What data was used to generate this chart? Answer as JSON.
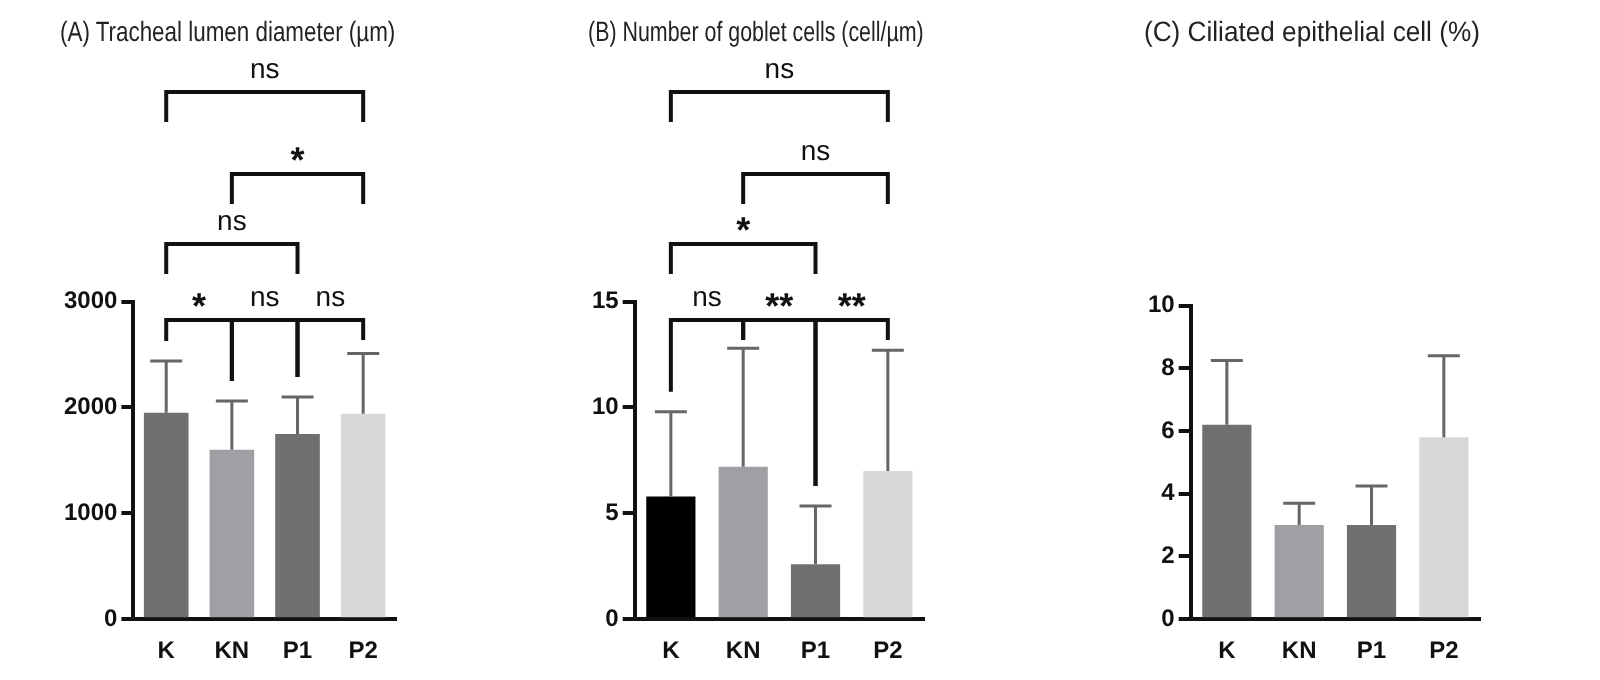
{
  "chart_data": [
    {
      "type": "bar",
      "title": "(A) Tracheal lumen diameter (µm)",
      "categories": [
        "K",
        "KN",
        "P1",
        "P2"
      ],
      "values": [
        1950,
        1600,
        1750,
        1940
      ],
      "colors": [
        "#707070",
        "#a0a0a4",
        "#707070",
        "#d8d8d8"
      ],
      "errors": [
        [
          1950,
          2440
        ],
        [
          1600,
          2060
        ],
        [
          1750,
          2100
        ],
        [
          1940,
          2510
        ]
      ],
      "ylim": [
        0,
        3000
      ],
      "yticks": [
        0,
        1000,
        2000,
        3000
      ],
      "grid": false,
      "legend": false,
      "annotations": [
        "*",
        "ns",
        "ns",
        "ns",
        "*",
        "ns"
      ]
    },
    {
      "type": "bar",
      "title": "(B) Number of goblet cells (cell/µm)",
      "categories": [
        "K",
        "KN",
        "P1",
        "P2"
      ],
      "values": [
        5.8,
        7.2,
        2.6,
        7.0
      ],
      "colors": [
        "#000000",
        "#a0a0a4",
        "#707070",
        "#d8d8d8"
      ],
      "errors": [
        [
          5.8,
          9.8
        ],
        [
          7.2,
          12.8
        ],
        [
          2.6,
          5.35
        ],
        [
          7.0,
          12.7
        ]
      ],
      "ylim": [
        0,
        15
      ],
      "yticks": [
        0,
        5,
        10,
        15
      ],
      "grid": false,
      "legend": false,
      "annotations": [
        "ns",
        "**",
        "**",
        "*",
        "ns",
        "ns"
      ]
    },
    {
      "type": "bar",
      "title": "(C) Ciliated epithelial cell (%)",
      "categories": [
        "K",
        "KN",
        "P1",
        "P2"
      ],
      "values": [
        6.2,
        3.0,
        3.0,
        5.8
      ],
      "colors": [
        "#707070",
        "#a0a0a4",
        "#707070",
        "#d8d8d8"
      ],
      "errors": [
        [
          6.2,
          8.25
        ],
        [
          3.0,
          3.7
        ],
        [
          3.0,
          4.25
        ],
        [
          5.8,
          8.4
        ]
      ],
      "ylim": [
        0,
        10
      ],
      "yticks": [
        0,
        2,
        4,
        6,
        8,
        10
      ],
      "grid": false,
      "legend": false
    }
  ]
}
